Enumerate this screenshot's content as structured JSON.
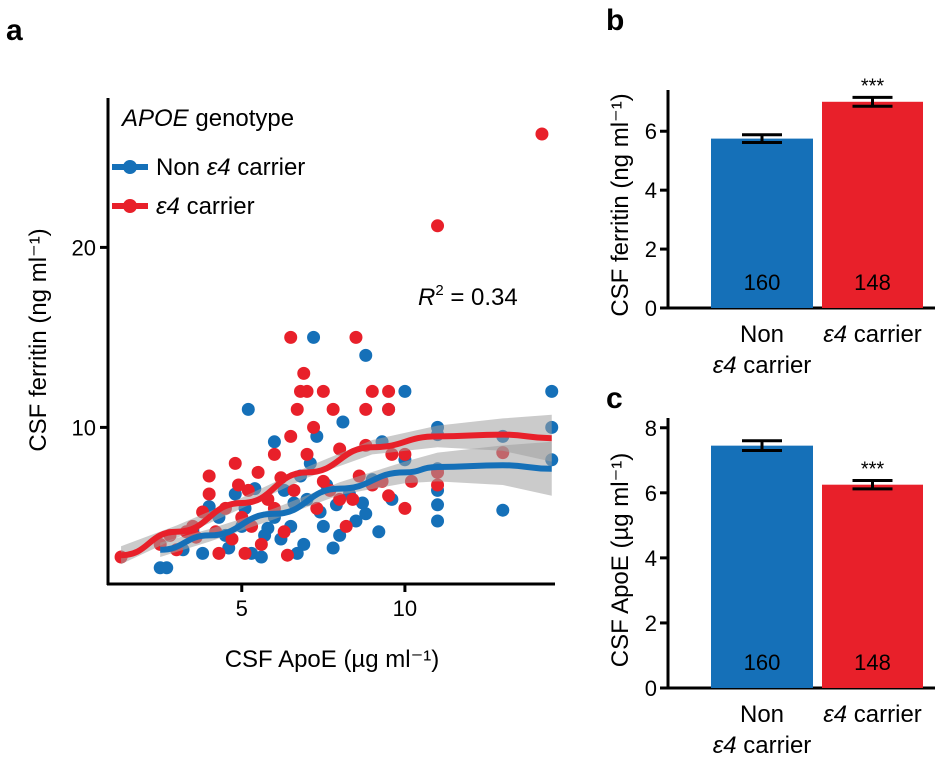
{
  "panel_labels": {
    "a": "a",
    "b": "b",
    "c": "c"
  },
  "colors": {
    "non_e4": "#1570B8",
    "e4": "#E8202A",
    "ribbon": "#a0a0a0"
  },
  "chart_data": [
    {
      "type": "scatter",
      "xlabel": "CSF ApoE (µg ml⁻¹)",
      "ylabel": "CSF ferritin (ng ml⁻¹)",
      "xlim": [
        0.9,
        14.6
      ],
      "ylim": [
        1.3,
        28.3
      ],
      "xticks": [
        "5",
        "10"
      ],
      "yticks": [
        "10",
        "20"
      ],
      "legend_title_italic": "APOE",
      "legend_title_rest": " genotype",
      "legend_placement": "top-left",
      "annotation": {
        "r": "R",
        "sup": "2",
        "rest": " = 0.34"
      },
      "series": [
        {
          "name_prefix": "Non ",
          "name_italic": "ε4",
          "name_suffix": " carrier",
          "points": [
            [
              2.5,
              2.2
            ],
            [
              2.7,
              2.2
            ],
            [
              3.2,
              3.2
            ],
            [
              3.5,
              4.3
            ],
            [
              3.8,
              3.0
            ],
            [
              4.0,
              5.6
            ],
            [
              4.3,
              5.0
            ],
            [
              4.5,
              4.0
            ],
            [
              4.6,
              3.3
            ],
            [
              4.8,
              6.3
            ],
            [
              5.0,
              4.5
            ],
            [
              5.1,
              5.5
            ],
            [
              5.2,
              11
            ],
            [
              5.3,
              3.0
            ],
            [
              5.4,
              6.6
            ],
            [
              5.6,
              2.8
            ],
            [
              5.8,
              4.4
            ],
            [
              6.0,
              5.0
            ],
            [
              6.0,
              9.2
            ],
            [
              6.2,
              3.8
            ],
            [
              6.3,
              6.5
            ],
            [
              6.5,
              4.5
            ],
            [
              6.6,
              5.8
            ],
            [
              6.8,
              7.3
            ],
            [
              6.9,
              3.5
            ],
            [
              7.0,
              6.0
            ],
            [
              7.2,
              15
            ],
            [
              7.1,
              8.0
            ],
            [
              7.3,
              9.5
            ],
            [
              7.4,
              5.3
            ],
            [
              7.5,
              4.5
            ],
            [
              7.6,
              6.8
            ],
            [
              7.8,
              3.3
            ],
            [
              7.9,
              5.7
            ],
            [
              8.0,
              4.0
            ],
            [
              8.1,
              10.3
            ],
            [
              8.3,
              6.3
            ],
            [
              8.5,
              4.8
            ],
            [
              8.8,
              14
            ],
            [
              8.8,
              5.2
            ],
            [
              9.0,
              7.1
            ],
            [
              9.2,
              4.2
            ],
            [
              9.3,
              9.2
            ],
            [
              9.5,
              11
            ],
            [
              9.6,
              6.0
            ],
            [
              10.0,
              12
            ],
            [
              10.0,
              8.2
            ],
            [
              11.0,
              10
            ],
            [
              11.0,
              9.6
            ],
            [
              11.0,
              7.7
            ],
            [
              11.0,
              6.5
            ],
            [
              11.0,
              5.7
            ],
            [
              11.0,
              4.8
            ],
            [
              13.0,
              9.5
            ],
            [
              13.0,
              5.4
            ],
            [
              14.5,
              12
            ],
            [
              14.5,
              10
            ],
            [
              14.5,
              8.2
            ],
            [
              5.7,
              4.0
            ],
            [
              6.7,
              3.0
            ],
            [
              8.7,
              5.8
            ]
          ],
          "fit": [
            [
              2.5,
              3.2
            ],
            [
              4,
              4.0
            ],
            [
              6,
              5.2
            ],
            [
              8,
              6.6
            ],
            [
              10,
              7.5
            ],
            [
              11,
              7.8
            ],
            [
              13,
              7.9
            ],
            [
              14.5,
              7.7
            ]
          ],
          "ci": [
            0.4,
            0.35,
            0.3,
            0.35,
            0.6,
            0.8,
            1.1,
            1.5
          ]
        },
        {
          "name_prefix": "",
          "name_italic": "ε4",
          "name_suffix": " carrier",
          "points": [
            [
              1.3,
              2.8
            ],
            [
              2.5,
              3.5
            ],
            [
              2.8,
              4.0
            ],
            [
              3.0,
              3.2
            ],
            [
              3.5,
              4.5
            ],
            [
              3.8,
              5.3
            ],
            [
              4.0,
              6.3
            ],
            [
              4.0,
              7.3
            ],
            [
              4.2,
              4.2
            ],
            [
              4.5,
              5.5
            ],
            [
              4.7,
              3.8
            ],
            [
              4.8,
              8.0
            ],
            [
              4.9,
              6.8
            ],
            [
              5.0,
              5.0
            ],
            [
              5.2,
              6.5
            ],
            [
              5.3,
              4.5
            ],
            [
              5.5,
              7.5
            ],
            [
              5.6,
              3.5
            ],
            [
              5.8,
              6.0
            ],
            [
              6.0,
              8.5
            ],
            [
              6.0,
              5.5
            ],
            [
              6.2,
              7.2
            ],
            [
              6.3,
              4.2
            ],
            [
              6.5,
              15
            ],
            [
              6.5,
              9.5
            ],
            [
              6.6,
              6.5
            ],
            [
              6.7,
              11
            ],
            [
              6.8,
              12
            ],
            [
              6.9,
              13
            ],
            [
              7.0,
              12
            ],
            [
              7.0,
              8.5
            ],
            [
              7.2,
              10
            ],
            [
              7.3,
              5.5
            ],
            [
              7.5,
              12
            ],
            [
              7.5,
              7.0
            ],
            [
              7.8,
              11
            ],
            [
              8.0,
              6.0
            ],
            [
              8.0,
              8.8
            ],
            [
              8.2,
              4.5
            ],
            [
              8.5,
              15
            ],
            [
              8.4,
              6.0
            ],
            [
              8.6,
              7.3
            ],
            [
              8.8,
              11
            ],
            [
              8.8,
              9.0
            ],
            [
              9.0,
              12
            ],
            [
              9.0,
              6.8
            ],
            [
              9.3,
              7.0
            ],
            [
              9.5,
              11
            ],
            [
              9.5,
              12
            ],
            [
              9.5,
              6.2
            ],
            [
              9.6,
              8.5
            ],
            [
              10.0,
              8.5
            ],
            [
              10.0,
              5.5
            ],
            [
              10.2,
              7.0
            ],
            [
              11.0,
              21.2
            ],
            [
              11.0,
              7.5
            ],
            [
              11.0,
              6.8
            ],
            [
              13.0,
              8.6
            ],
            [
              14.2,
              26.3
            ],
            [
              3.3,
              4.2
            ],
            [
              4.3,
              3.0
            ],
            [
              5.1,
              3.0
            ],
            [
              6.4,
              2.9
            ],
            [
              3.6,
              3.9
            ],
            [
              7.7,
              6.5
            ]
          ],
          "fit": [
            [
              1.3,
              2.9
            ],
            [
              3,
              4.2
            ],
            [
              5,
              5.8
            ],
            [
              7,
              7.5
            ],
            [
              9,
              8.9
            ],
            [
              11,
              9.5
            ],
            [
              13,
              9.6
            ],
            [
              14.5,
              9.4
            ]
          ],
          "ci": [
            0.5,
            0.35,
            0.3,
            0.3,
            0.4,
            0.6,
            0.9,
            1.3
          ]
        }
      ]
    },
    {
      "type": "bar",
      "ylabel": "CSF ferritin (ng ml⁻¹)",
      "ylim": [
        0,
        7.4
      ],
      "yticks": [
        "0",
        "2",
        "4",
        "6"
      ],
      "categories": [
        {
          "line1": "Non",
          "italic": "ε4",
          "rest": " carrier"
        },
        {
          "line1": "",
          "italic": "ε4",
          "rest": " carrier"
        }
      ],
      "values": [
        5.75,
        7.0
      ],
      "errors": [
        0.13,
        0.15
      ],
      "n_labels": [
        "160",
        "148"
      ],
      "significance": [
        "",
        "***"
      ]
    },
    {
      "type": "bar",
      "ylabel": "CSF ApoE (µg ml⁻¹)",
      "ylim": [
        0,
        8.3
      ],
      "yticks": [
        "0",
        "2",
        "4",
        "6",
        "8"
      ],
      "categories": [
        {
          "line1": "Non",
          "italic": "ε4",
          "rest": " carrier"
        },
        {
          "line1": "",
          "italic": "ε4",
          "rest": " carrier"
        }
      ],
      "values": [
        7.45,
        6.25
      ],
      "errors": [
        0.15,
        0.13
      ],
      "n_labels": [
        "160",
        "148"
      ],
      "significance": [
        "",
        "***"
      ]
    }
  ]
}
